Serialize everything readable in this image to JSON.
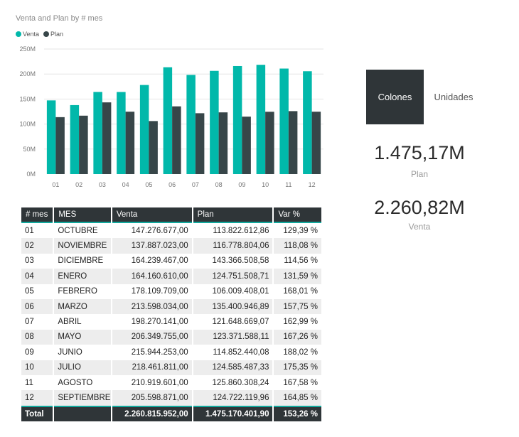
{
  "chart": {
    "title": "Venta and Plan by # mes",
    "legend": [
      {
        "name": "Venta",
        "color": "#01b8aa"
      },
      {
        "name": "Plan",
        "color": "#374649"
      }
    ]
  },
  "chart_data": {
    "type": "bar",
    "title": "Venta and Plan by # mes",
    "xlabel": "",
    "ylabel": "",
    "categories": [
      "01",
      "02",
      "03",
      "04",
      "05",
      "06",
      "07",
      "08",
      "09",
      "10",
      "11",
      "12"
    ],
    "y_ticks": [
      "0M",
      "50M",
      "100M",
      "150M",
      "200M",
      "250M"
    ],
    "ylim": [
      0,
      250000000
    ],
    "grid": true,
    "legend_position": "top-left",
    "series": [
      {
        "name": "Venta",
        "color": "#01b8aa",
        "values": [
          147276677.0,
          137887023.0,
          164239467.0,
          164160610.0,
          178109709.0,
          213598034.0,
          198270141.0,
          206349755.0,
          215944253.0,
          218461811.0,
          210919601.0,
          205598871.0
        ]
      },
      {
        "name": "Plan",
        "color": "#374649",
        "values": [
          113822612.86,
          116778804.06,
          143366508.58,
          124751508.71,
          106009408.01,
          135400946.89,
          121648669.07,
          123371588.11,
          114852440.08,
          124585487.33,
          125860308.24,
          124722119.96
        ]
      }
    ]
  },
  "toggle": {
    "active": "Colones",
    "inactive": "Unidades"
  },
  "cards": [
    {
      "value": "1.475,17M",
      "label": "Plan"
    },
    {
      "value": "2.260,82M",
      "label": "Venta"
    }
  ],
  "table": {
    "headers": [
      "# mes",
      "MES",
      "Venta",
      "Plan",
      "Var %"
    ],
    "rows": [
      [
        "01",
        "OCTUBRE",
        "147.276.677,00",
        "113.822.612,86",
        "129,39 %"
      ],
      [
        "02",
        "NOVIEMBRE",
        "137.887.023,00",
        "116.778.804,06",
        "118,08 %"
      ],
      [
        "03",
        "DICIEMBRE",
        "164.239.467,00",
        "143.366.508,58",
        "114,56 %"
      ],
      [
        "04",
        "ENERO",
        "164.160.610,00",
        "124.751.508,71",
        "131,59 %"
      ],
      [
        "05",
        "FEBRERO",
        "178.109.709,00",
        "106.009.408,01",
        "168,01 %"
      ],
      [
        "06",
        "MARZO",
        "213.598.034,00",
        "135.400.946,89",
        "157,75 %"
      ],
      [
        "07",
        "ABRIL",
        "198.270.141,00",
        "121.648.669,07",
        "162,99 %"
      ],
      [
        "08",
        "MAYO",
        "206.349.755,00",
        "123.371.588,11",
        "167,26 %"
      ],
      [
        "09",
        "JUNIO",
        "215.944.253,00",
        "114.852.440,08",
        "188,02 %"
      ],
      [
        "10",
        "JULIO",
        "218.461.811,00",
        "124.585.487,33",
        "175,35 %"
      ],
      [
        "11",
        "AGOSTO",
        "210.919.601,00",
        "125.860.308,24",
        "167,58 %"
      ],
      [
        "12",
        "SEPTIEMBRE",
        "205.598.871,00",
        "124.722.119,96",
        "164,85 %"
      ]
    ],
    "total": {
      "label": "Total",
      "venta": "2.260.815.952,00",
      "plan": "1.475.170.401,90",
      "var": "153,26 %"
    }
  }
}
